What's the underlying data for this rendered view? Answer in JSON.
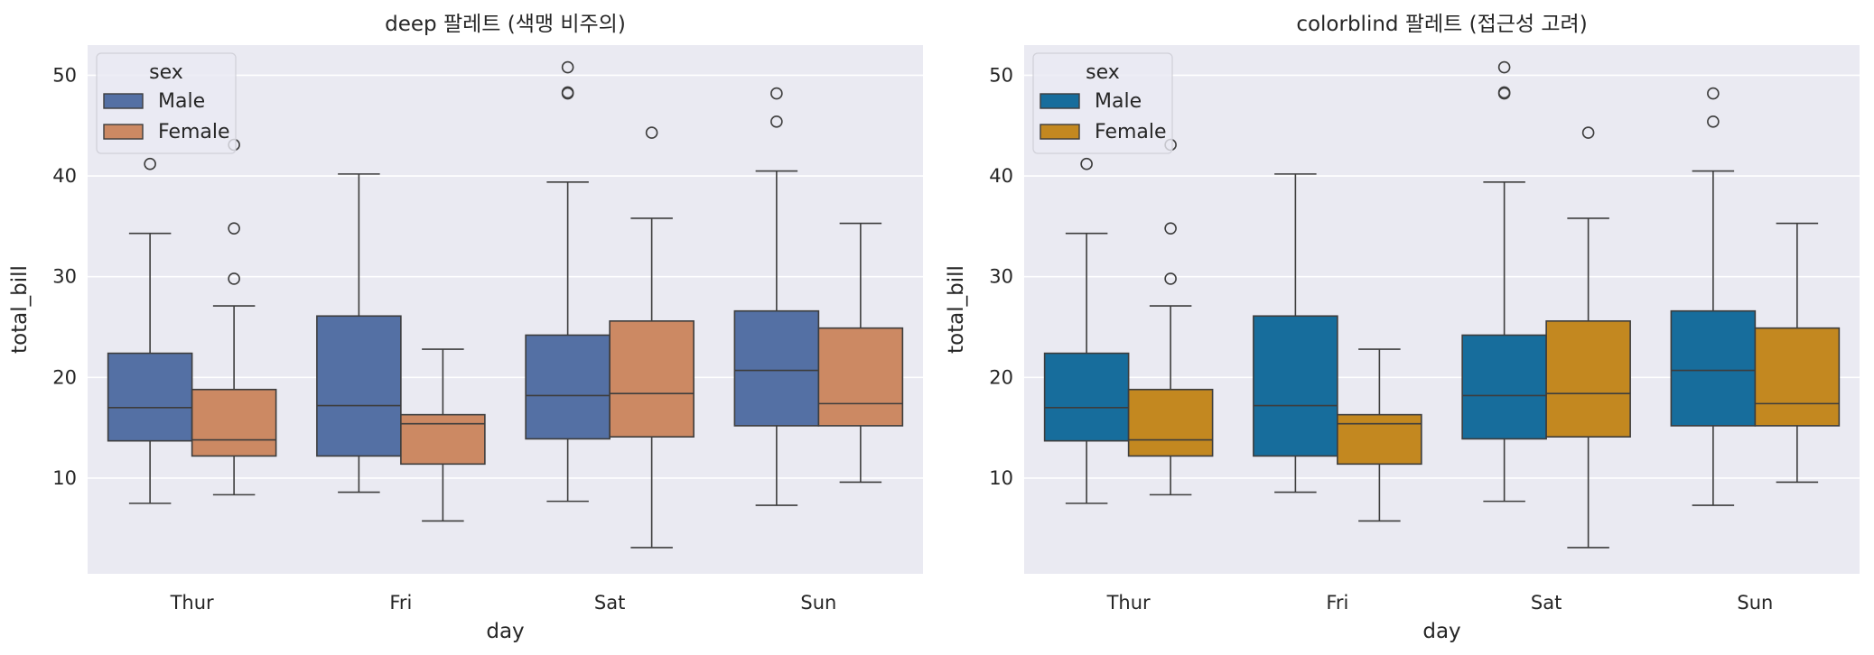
{
  "chart_data": [
    {
      "type": "box",
      "title": "deep 팔레트 (색맹 비주의)",
      "xlabel": "day",
      "ylabel": "total_bill",
      "ylim": [
        0.5,
        53
      ],
      "yticks": [
        10,
        20,
        30,
        40,
        50
      ],
      "categories": [
        "Thur",
        "Fri",
        "Sat",
        "Sun"
      ],
      "grid": true,
      "legend": {
        "title": "sex",
        "placement": "top-left"
      },
      "series": [
        {
          "name": "Male",
          "color": "#5470a4",
          "boxes": [
            {
              "whislo": 7.5,
              "q1": 13.7,
              "med": 17.0,
              "q3": 22.4,
              "whishi": 34.3,
              "fliers": [
                41.2
              ]
            },
            {
              "whislo": 8.6,
              "q1": 12.2,
              "med": 17.2,
              "q3": 26.1,
              "whishi": 40.2,
              "fliers": []
            },
            {
              "whislo": 7.7,
              "q1": 13.9,
              "med": 18.2,
              "q3": 24.2,
              "whishi": 39.4,
              "fliers": [
                48.3,
                48.2,
                50.8
              ]
            },
            {
              "whislo": 7.3,
              "q1": 15.2,
              "med": 20.7,
              "q3": 26.6,
              "whishi": 40.5,
              "fliers": [
                45.4,
                48.2
              ]
            }
          ]
        },
        {
          "name": "Female",
          "color": "#cc8963",
          "boxes": [
            {
              "whislo": 8.35,
              "q1": 12.2,
              "med": 13.8,
              "q3": 18.8,
              "whishi": 27.1,
              "fliers": [
                29.8,
                34.8,
                43.1
              ]
            },
            {
              "whislo": 5.75,
              "q1": 11.4,
              "med": 15.4,
              "q3": 16.3,
              "whishi": 22.8,
              "fliers": []
            },
            {
              "whislo": 3.1,
              "q1": 14.1,
              "med": 18.4,
              "q3": 25.6,
              "whishi": 35.8,
              "fliers": [
                44.3
              ]
            },
            {
              "whislo": 9.6,
              "q1": 15.2,
              "med": 17.4,
              "q3": 24.9,
              "whishi": 35.3,
              "fliers": []
            }
          ]
        }
      ]
    },
    {
      "type": "box",
      "title": "colorblind 팔레트 (접근성 고려)",
      "xlabel": "day",
      "ylabel": "total_bill",
      "ylim": [
        0.5,
        53
      ],
      "yticks": [
        10,
        20,
        30,
        40,
        50
      ],
      "categories": [
        "Thur",
        "Fri",
        "Sat",
        "Sun"
      ],
      "grid": true,
      "legend": {
        "title": "sex",
        "placement": "top-left"
      },
      "series": [
        {
          "name": "Male",
          "color": "#176d9c",
          "boxes": [
            {
              "whislo": 7.5,
              "q1": 13.7,
              "med": 17.0,
              "q3": 22.4,
              "whishi": 34.3,
              "fliers": [
                41.2
              ]
            },
            {
              "whislo": 8.6,
              "q1": 12.2,
              "med": 17.2,
              "q3": 26.1,
              "whishi": 40.2,
              "fliers": []
            },
            {
              "whislo": 7.7,
              "q1": 13.9,
              "med": 18.2,
              "q3": 24.2,
              "whishi": 39.4,
              "fliers": [
                48.3,
                48.2,
                50.8
              ]
            },
            {
              "whislo": 7.3,
              "q1": 15.2,
              "med": 20.7,
              "q3": 26.6,
              "whishi": 40.5,
              "fliers": [
                45.4,
                48.2
              ]
            }
          ]
        },
        {
          "name": "Female",
          "color": "#c38820",
          "boxes": [
            {
              "whislo": 8.35,
              "q1": 12.2,
              "med": 13.8,
              "q3": 18.8,
              "whishi": 27.1,
              "fliers": [
                29.8,
                34.8,
                43.1
              ]
            },
            {
              "whislo": 5.75,
              "q1": 11.4,
              "med": 15.4,
              "q3": 16.3,
              "whishi": 22.8,
              "fliers": []
            },
            {
              "whislo": 3.1,
              "q1": 14.1,
              "med": 18.4,
              "q3": 25.6,
              "whishi": 35.8,
              "fliers": [
                44.3
              ]
            },
            {
              "whislo": 9.6,
              "q1": 15.2,
              "med": 17.4,
              "q3": 24.9,
              "whishi": 35.3,
              "fliers": []
            }
          ]
        }
      ]
    }
  ]
}
